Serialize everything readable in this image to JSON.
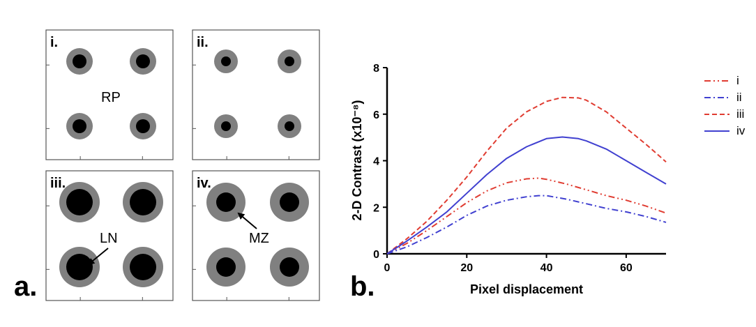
{
  "panel_a": {
    "letter": "a.",
    "panels": [
      {
        "label": "i.",
        "inner_r": 10,
        "outer_r": 19
      },
      {
        "label": "ii.",
        "inner_r": 7,
        "outer_r": 17
      },
      {
        "label": "iii.",
        "inner_r": 19,
        "outer_r": 29
      },
      {
        "label": "iv.",
        "inner_r": 14,
        "outer_r": 28
      }
    ],
    "annotations": {
      "rp": "RP",
      "ln": "LN",
      "mz": "MZ"
    },
    "colors": {
      "follicle_center": "#000000",
      "follicle_ring": "#808080",
      "frame": "#555555"
    }
  },
  "panel_b": {
    "letter": "b."
  },
  "chart_data": {
    "type": "line",
    "xlabel": "Pixel displacement",
    "ylabel": "2-D Contrast (x10⁻⁸)",
    "xlim": [
      0,
      70
    ],
    "ylim": [
      0,
      8
    ],
    "xticks": [
      0,
      20,
      40,
      60
    ],
    "yticks": [
      0,
      2,
      4,
      6,
      8
    ],
    "grid": false,
    "legend_position": "top-right",
    "series": [
      {
        "name": "i",
        "color": "#e03c31",
        "dash": "9,4,2,4,2,4",
        "x": [
          0,
          5,
          10,
          15,
          20,
          25,
          30,
          35,
          38,
          40,
          45,
          50,
          55,
          60,
          65,
          70
        ],
        "y": [
          0,
          0.45,
          1.0,
          1.6,
          2.2,
          2.7,
          3.05,
          3.22,
          3.25,
          3.2,
          3.0,
          2.75,
          2.5,
          2.3,
          2.05,
          1.75
        ]
      },
      {
        "name": "ii",
        "color": "#4040d0",
        "dash": "9,4,2,4",
        "x": [
          0,
          5,
          10,
          15,
          20,
          25,
          30,
          35,
          38,
          40,
          45,
          50,
          55,
          60,
          65,
          70
        ],
        "y": [
          0,
          0.3,
          0.7,
          1.15,
          1.65,
          2.05,
          2.3,
          2.45,
          2.5,
          2.5,
          2.35,
          2.15,
          1.95,
          1.8,
          1.6,
          1.35
        ]
      },
      {
        "name": "iii",
        "color": "#e03c31",
        "dash": "7,4",
        "x": [
          0,
          5,
          10,
          15,
          20,
          25,
          30,
          35,
          40,
          44,
          48,
          50,
          55,
          60,
          65,
          70
        ],
        "y": [
          0,
          0.65,
          1.4,
          2.3,
          3.3,
          4.4,
          5.4,
          6.1,
          6.55,
          6.72,
          6.7,
          6.6,
          6.1,
          5.4,
          4.7,
          3.95
        ]
      },
      {
        "name": "iv",
        "color": "#4040d0",
        "dash": "",
        "x": [
          0,
          5,
          10,
          15,
          20,
          25,
          30,
          35,
          40,
          44,
          48,
          50,
          55,
          60,
          65,
          70
        ],
        "y": [
          0,
          0.55,
          1.15,
          1.8,
          2.6,
          3.4,
          4.1,
          4.6,
          4.95,
          5.02,
          4.95,
          4.85,
          4.5,
          4.0,
          3.5,
          3.0
        ]
      }
    ]
  }
}
